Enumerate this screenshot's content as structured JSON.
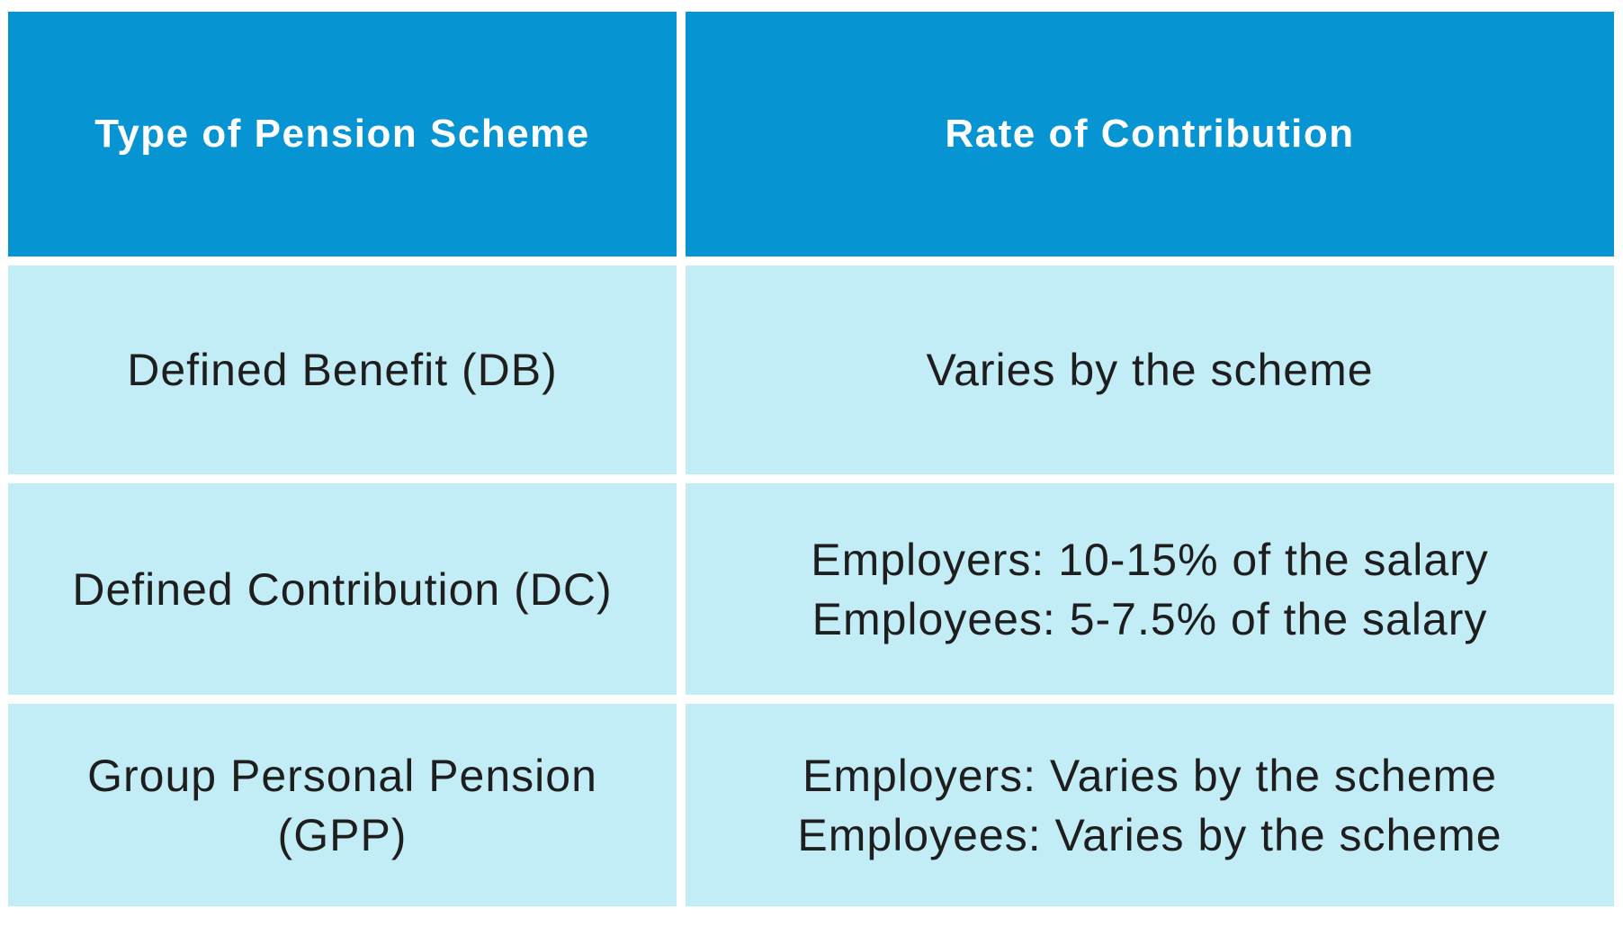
{
  "table": {
    "headers": [
      {
        "label": "Type of Pension Scheme"
      },
      {
        "label": "Rate of Contribution"
      }
    ],
    "rows": [
      {
        "scheme_lines": [
          "Defined Benefit (DB)"
        ],
        "contribution_lines": [
          "Varies by the scheme"
        ]
      },
      {
        "scheme_lines": [
          "Defined Contribution (DC)"
        ],
        "contribution_lines": [
          "Employers: 10-15% of the salary",
          "Employees: 5-7.5% of the salary"
        ]
      },
      {
        "scheme_lines": [
          "Group Personal Pension",
          "(GPP)"
        ],
        "contribution_lines": [
          "Employers: Varies by the scheme",
          "Employees: Varies by the scheme"
        ]
      }
    ]
  },
  "chart_data": {
    "type": "table",
    "columns": [
      "Type of Pension Scheme",
      "Rate of Contribution"
    ],
    "rows": [
      [
        "Defined Benefit (DB)",
        "Varies by the scheme"
      ],
      [
        "Defined Contribution (DC)",
        "Employers: 10-15% of the salary; Employees: 5-7.5% of the salary"
      ],
      [
        "Group Personal Pension (GPP)",
        "Employers: Varies by the scheme; Employees: Varies by the scheme"
      ]
    ]
  },
  "colors": {
    "header_bg": "#0694d3",
    "row_bg": "#c3edf6",
    "header_text": "#ffffff",
    "body_text": "#1e1e1e",
    "page_bg": "#ffffff"
  }
}
